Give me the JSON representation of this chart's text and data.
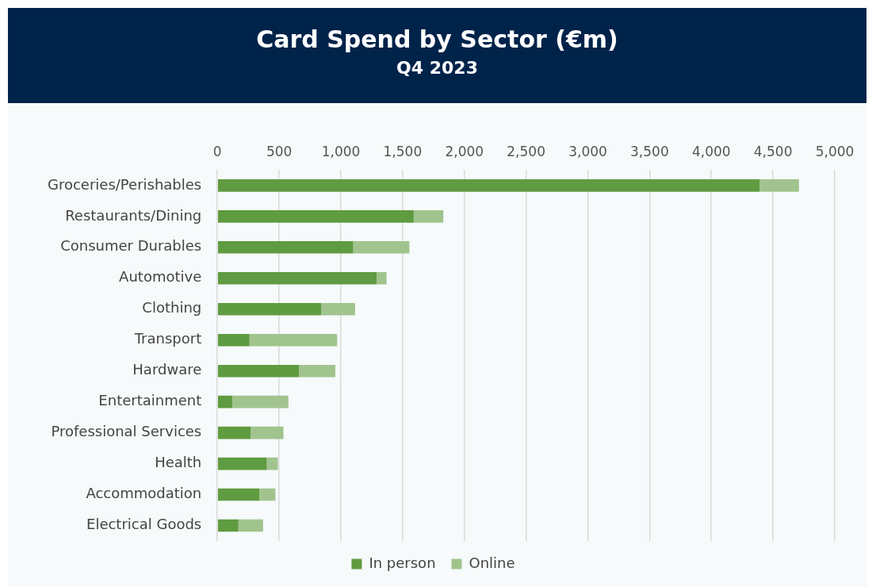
{
  "chart_data": {
    "type": "bar",
    "orientation": "horizontal",
    "stacked": true,
    "title": "Card Spend by Sector (€m)",
    "subtitle": "Q4 2023",
    "categories": [
      "Groceries/Perishables",
      "Restaurants/Dining",
      "Consumer Durables",
      "Automotive",
      "Clothing",
      "Transport",
      "Hardware",
      "Entertainment",
      "Professional Services",
      "Health",
      "Accommodation",
      "Electrical Goods"
    ],
    "series": [
      {
        "name": "In person",
        "color": "#5f9b41",
        "values": [
          4390,
          1590,
          1100,
          1290,
          840,
          260,
          660,
          120,
          270,
          400,
          340,
          170
        ]
      },
      {
        "name": "Online",
        "color": "#a1c48e",
        "values": [
          320,
          240,
          455,
          80,
          275,
          710,
          295,
          455,
          265,
          90,
          130,
          200
        ]
      }
    ],
    "xlim": [
      0,
      5000
    ],
    "xticks": [
      0,
      500,
      {
        "value": 1000,
        "label": "1,000"
      },
      {
        "value": 1500,
        "label": "1,500"
      },
      {
        "value": 2000,
        "label": "2,000"
      },
      {
        "value": 2500,
        "label": "2,500"
      },
      {
        "value": 3000,
        "label": "3,000"
      },
      {
        "value": 3500,
        "label": "3,500"
      },
      {
        "value": 4000,
        "label": "4,000"
      },
      {
        "value": 4500,
        "label": "4,500"
      },
      {
        "value": 5000,
        "label": "5,000"
      }
    ],
    "grid": "x",
    "legend": "bottom"
  }
}
